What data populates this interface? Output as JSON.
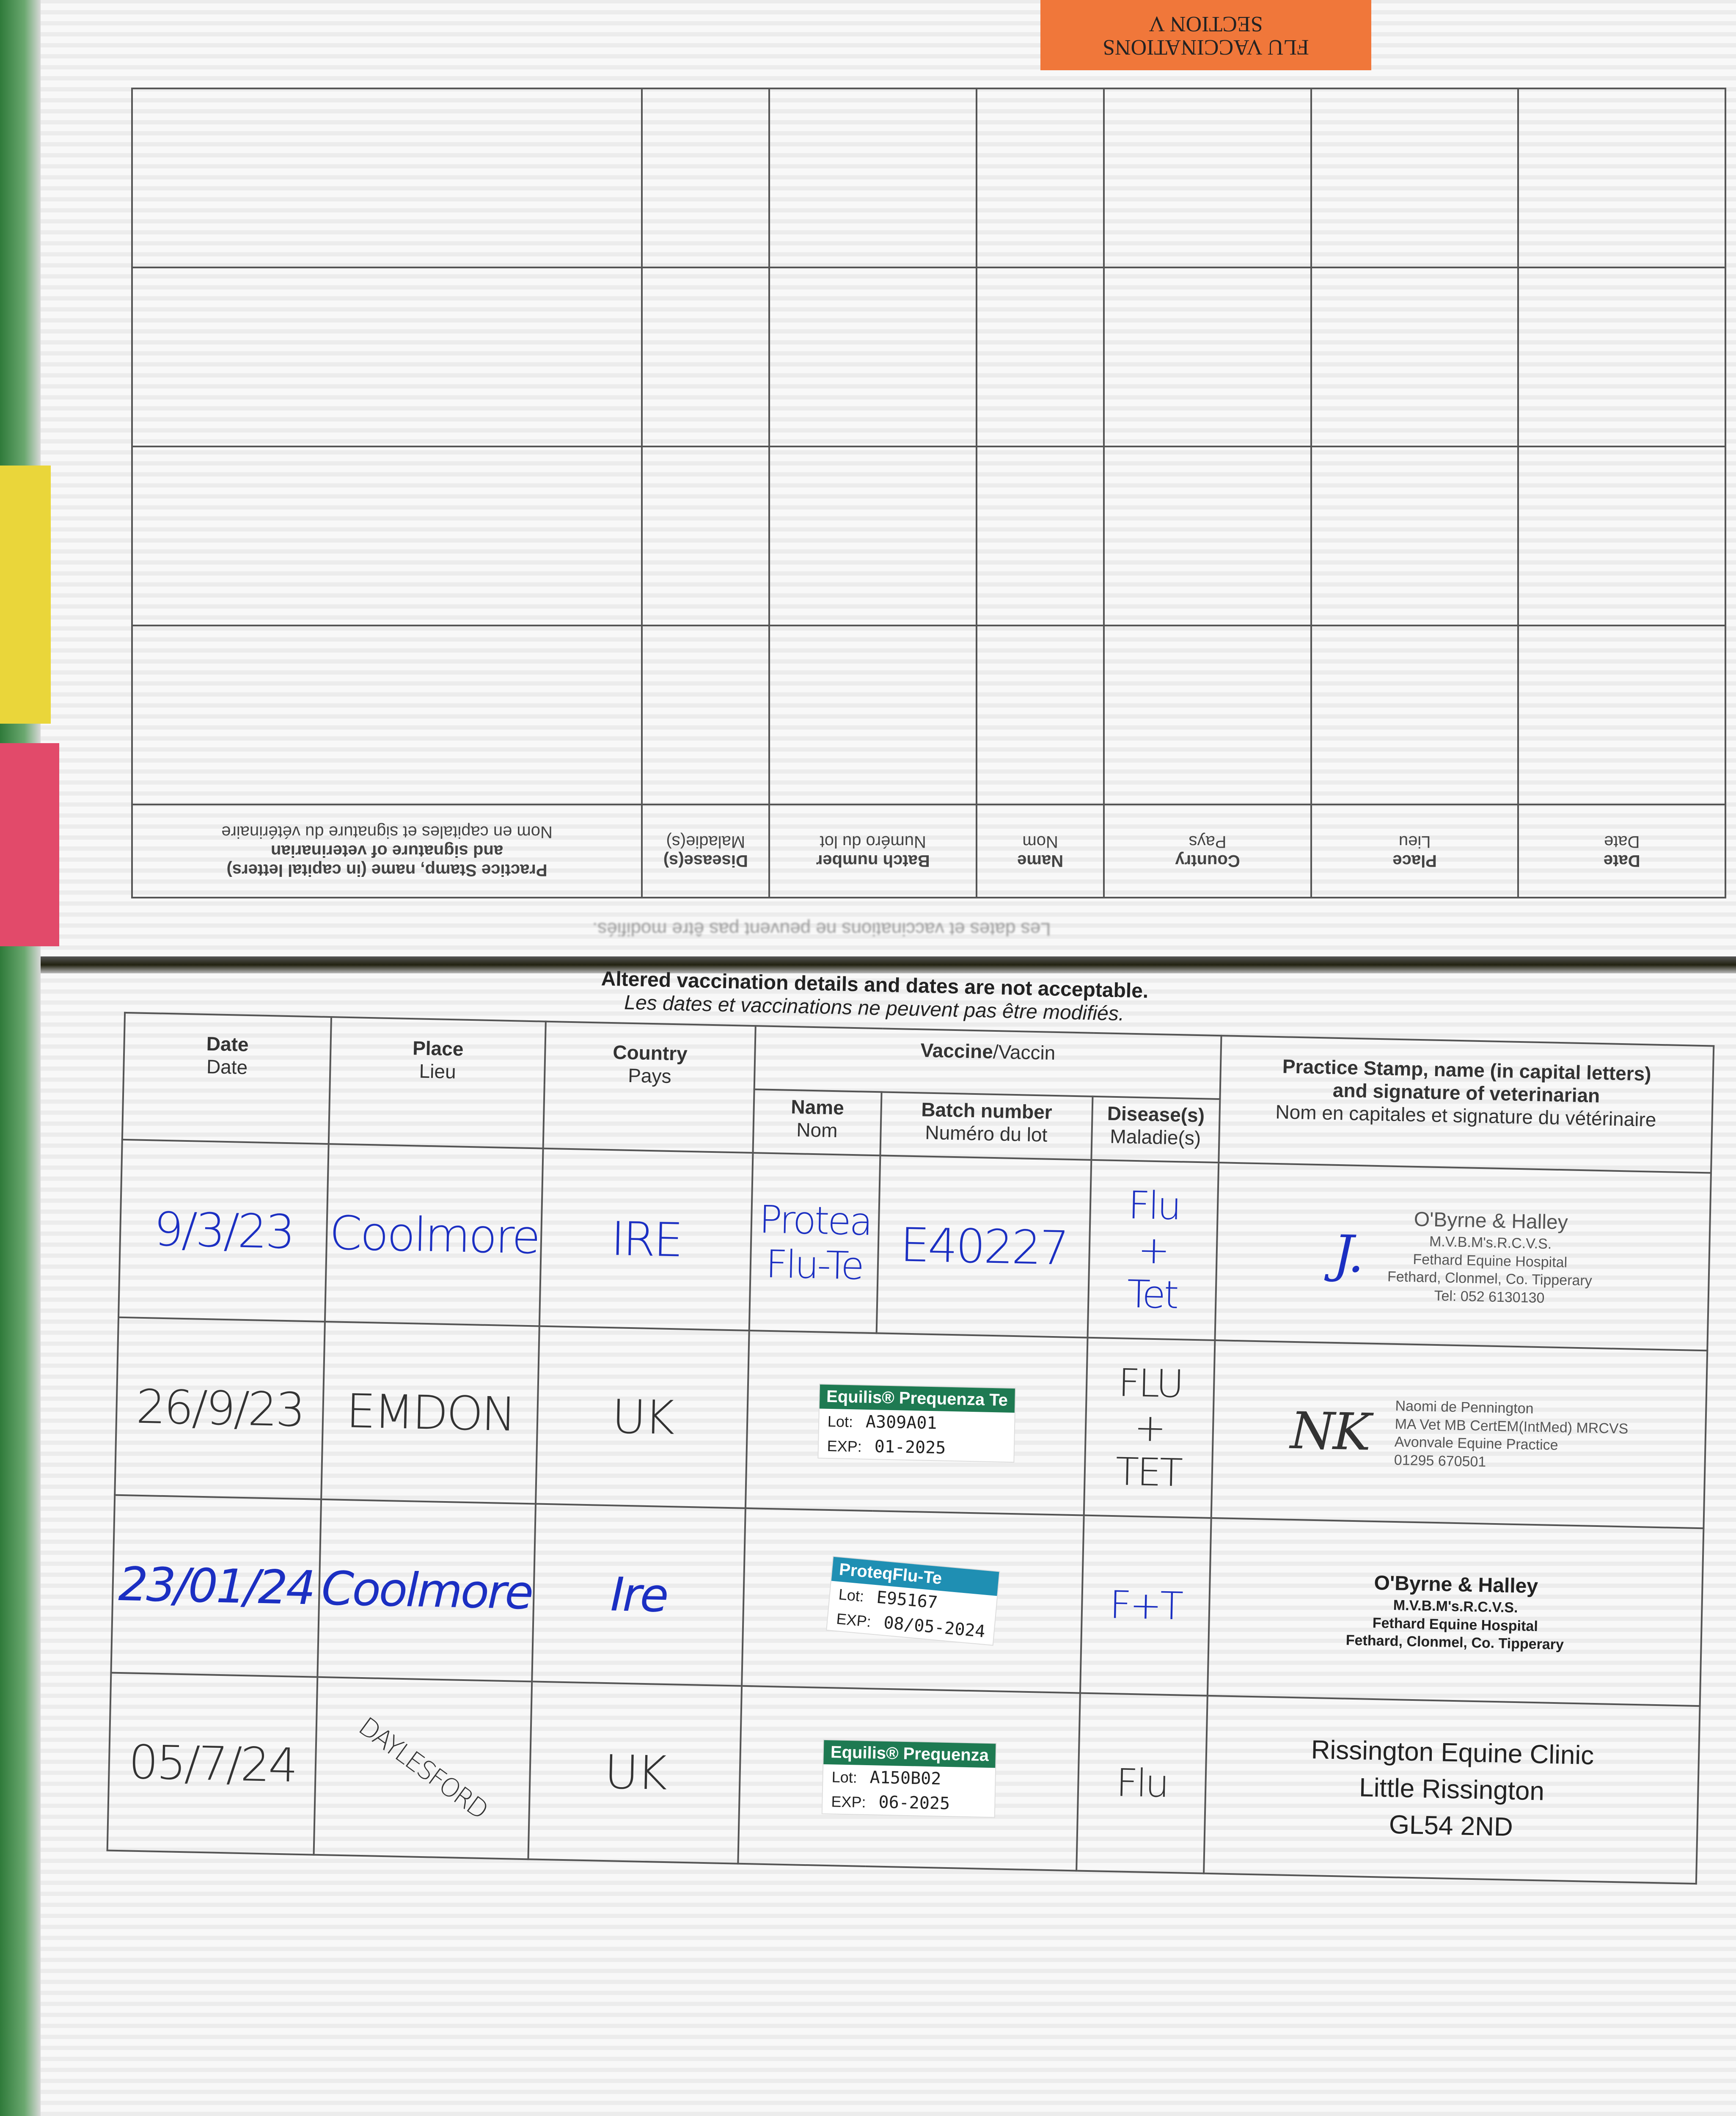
{
  "section_tab": {
    "line1": "FLU VACCINATIONS",
    "line2": "SECTION V"
  },
  "headers": {
    "date": {
      "en": "Date",
      "fr": "Date"
    },
    "place": {
      "en": "Place",
      "fr": "Lieu"
    },
    "country": {
      "en": "Country",
      "fr": "Pays"
    },
    "vaccine": {
      "en": "Vaccine",
      "fr": "/Vaccin"
    },
    "name": {
      "en": "Name",
      "fr": "Nom"
    },
    "batch": {
      "en": "Batch number",
      "fr": "Numéro du lot"
    },
    "disease": {
      "en": "Disease(s)",
      "fr": "Maladie(s)"
    },
    "stamp": {
      "en1": "Practice Stamp, name (in capital letters)",
      "en2": "and signature of veterinarian",
      "fr": "Nom en capitales et signature du vétérinaire"
    }
  },
  "warning": {
    "en": "Altered vaccination details and dates are not acceptable.",
    "fr": "Les dates et vaccinations ne peuvent pas être modifiés."
  },
  "entries": [
    {
      "date": "9/3/23",
      "place": "Coolmore",
      "country": "IRE",
      "name_line1": "Protea",
      "name_line2": "Flu-Te",
      "batch": "E40227",
      "disease_line1": "Flu",
      "disease_line2": "+",
      "disease_line3": "Tet",
      "stamp": {
        "name": "O'Byrne & Halley",
        "line2": "M.V.B.M's.R.C.V.S.",
        "line3": "Fethard Equine Hospital",
        "line4": "Fethard, Clonmel, Co. Tipperary",
        "line5": "Tel: 052 6130130"
      }
    },
    {
      "date": "26/9/23",
      "place": "EMDON",
      "country": "UK",
      "label": {
        "brand": "Equilis® Prequenza Te",
        "lot_label": "Lot:",
        "lot": "A309A01",
        "exp_label": "EXP:",
        "exp": "01-2025",
        "color": "#1e7a52"
      },
      "disease_line1": "FLU",
      "disease_line2": "+",
      "disease_line3": "TET",
      "stamp": {
        "name": "Naomi de Pennington",
        "line2": "MA Vet MB CertEM(IntMed) MRCVS",
        "line3": "Avonvale Equine Practice",
        "line4": "01295 670501"
      }
    },
    {
      "date": "23/01/24",
      "place": "Coolmore",
      "country": "Ire",
      "label": {
        "brand": "ProteqFlu-Te",
        "lot_label": "Lot:",
        "lot": "E95167",
        "exp_label": "EXP:",
        "exp": "08/05-2024",
        "color": "#1f8fb3"
      },
      "disease": "F+T",
      "stamp": {
        "name": "O'Byrne & Halley",
        "line2": "M.V.B.M's.R.C.V.S.",
        "line3": "Fethard Equine Hospital",
        "line4": "Fethard, Clonmel, Co. Tipperary"
      }
    },
    {
      "date": "05/7/24",
      "place": "DAYLESFORD",
      "country": "UK",
      "label": {
        "brand": "Equilis® Prequenza",
        "lot_label": "Lot:",
        "lot": "A150B02",
        "exp_label": "EXP:",
        "exp": "06-2025",
        "color": "#1e7a52"
      },
      "disease": "Flu",
      "stamp": {
        "line1": "Rissington Equine Clinic",
        "line2": "Little Rissington",
        "line3": "GL54 2ND"
      }
    }
  ]
}
